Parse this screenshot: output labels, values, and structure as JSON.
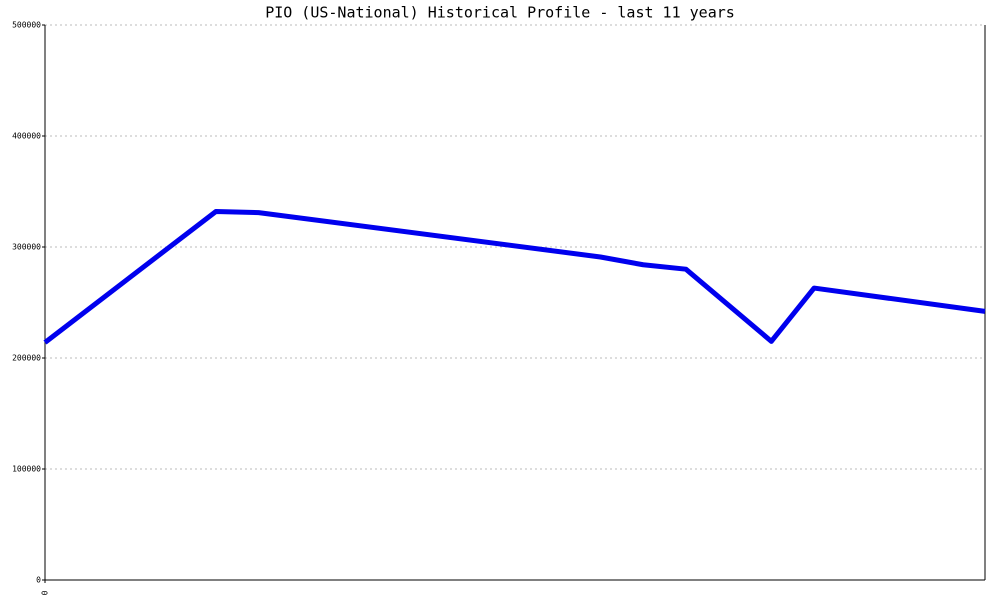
{
  "chart_data": {
    "type": "line",
    "title": "PIO (US-National) Historical Profile - last 11 years",
    "x": [
      0,
      2,
      2.5,
      6.5,
      7,
      7.5,
      8.5,
      9,
      11
    ],
    "series": [
      {
        "color": "#0000ee",
        "values": [
          214000,
          332000,
          331000,
          291000,
          284000,
          280000,
          215000,
          263000,
          242000
        ]
      }
    ],
    "xlim": [
      0,
      11
    ],
    "xticks": [
      0
    ],
    "ylim": [
      0,
      500000
    ],
    "yticks": [
      0,
      100000,
      200000,
      300000,
      400000,
      500000
    ],
    "grid": true
  }
}
